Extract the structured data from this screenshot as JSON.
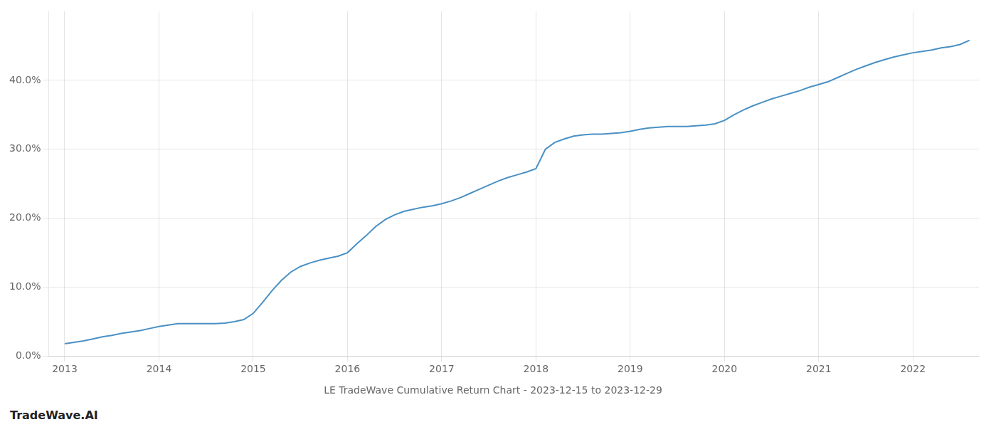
{
  "chart_data": {
    "type": "line",
    "title": "LE TradeWave Cumulative Return Chart - 2023-12-15 to 2023-12-29",
    "annotations": [
      "TradeWave.AI"
    ],
    "color": "#4a90c4",
    "x": [
      2013.0,
      2013.1,
      2013.2,
      2013.3,
      2013.4,
      2013.5,
      2013.6,
      2013.7,
      2013.8,
      2013.9,
      2014.0,
      2014.1,
      2014.2,
      2014.3,
      2014.4,
      2014.5,
      2014.6,
      2014.7,
      2014.8,
      2014.9,
      2015.0,
      2015.1,
      2015.2,
      2015.3,
      2015.4,
      2015.5,
      2015.6,
      2015.7,
      2015.8,
      2015.9,
      2016.0,
      2016.1,
      2016.2,
      2016.3,
      2016.4,
      2016.5,
      2016.6,
      2016.7,
      2016.8,
      2016.9,
      2017.0,
      2017.1,
      2017.2,
      2017.3,
      2017.4,
      2017.5,
      2017.6,
      2017.7,
      2017.8,
      2017.9,
      2018.0,
      2018.1,
      2018.2,
      2018.3,
      2018.4,
      2018.5,
      2018.6,
      2018.7,
      2018.8,
      2018.9,
      2019.0,
      2019.1,
      2019.2,
      2019.3,
      2019.4,
      2019.5,
      2019.6,
      2019.7,
      2019.8,
      2019.9,
      2020.0,
      2020.1,
      2020.2,
      2020.3,
      2020.4,
      2020.5,
      2020.6,
      2020.7,
      2020.8,
      2020.9,
      2021.0,
      2021.1,
      2021.2,
      2021.3,
      2021.4,
      2021.5,
      2021.6,
      2021.7,
      2021.8,
      2021.9,
      2022.0,
      2022.1,
      2022.2,
      2022.3,
      2022.4,
      2022.5,
      2022.6
    ],
    "values": [
      0.018,
      0.02,
      0.022,
      0.025,
      0.028,
      0.03,
      0.033,
      0.035,
      0.037,
      0.04,
      0.043,
      0.045,
      0.047,
      0.047,
      0.047,
      0.047,
      0.047,
      0.048,
      0.05,
      0.053,
      0.062,
      0.078,
      0.095,
      0.11,
      0.122,
      0.13,
      0.135,
      0.139,
      0.142,
      0.145,
      0.15,
      0.163,
      0.175,
      0.188,
      0.198,
      0.205,
      0.21,
      0.213,
      0.216,
      0.218,
      0.221,
      0.225,
      0.23,
      0.236,
      0.242,
      0.248,
      0.254,
      0.259,
      0.263,
      0.267,
      0.272,
      0.3,
      0.31,
      0.315,
      0.319,
      0.321,
      0.322,
      0.322,
      0.323,
      0.324,
      0.326,
      0.329,
      0.331,
      0.332,
      0.333,
      0.333,
      0.333,
      0.334,
      0.335,
      0.337,
      0.342,
      0.35,
      0.357,
      0.363,
      0.368,
      0.373,
      0.377,
      0.381,
      0.385,
      0.39,
      0.394,
      0.398,
      0.404,
      0.41,
      0.416,
      0.421,
      0.426,
      0.43,
      0.434,
      0.437,
      0.44,
      0.442,
      0.444,
      0.447,
      0.449,
      0.452,
      0.458
    ],
    "xlim": [
      2012.83,
      2022.7
    ],
    "xticks": [
      2013,
      2014,
      2015,
      2016,
      2017,
      2018,
      2019,
      2020,
      2021,
      2022
    ],
    "ylim": [
      0.0,
      0.5
    ],
    "yticks": [
      {
        "value": 0.0,
        "label": "0.0%"
      },
      {
        "value": 0.1,
        "label": "10.0%"
      },
      {
        "value": 0.2,
        "label": "20.0%"
      },
      {
        "value": 0.3,
        "label": "30.0%"
      },
      {
        "value": 0.4,
        "label": "40.0%"
      }
    ],
    "grid": true
  }
}
